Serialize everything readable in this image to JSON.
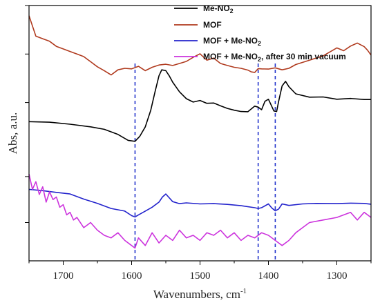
{
  "chart_data": {
    "type": "line",
    "title": "",
    "xlabel": "Wavenumbers, cm",
    "xlabel_sup": "-1",
    "ylabel": "Abs, a.u.",
    "x_axis_reversed": true,
    "xlim": [
      1750,
      1250
    ],
    "ylim": [
      0,
      100
    ],
    "x_ticks": [
      1700,
      1600,
      1500,
      1400,
      1300
    ],
    "y_ticks_unlabeled": [
      15,
      33,
      62,
      81,
      100
    ],
    "grid": false,
    "legend_position": "top-right",
    "reference_lines": [
      1595,
      1415,
      1390
    ],
    "series": [
      {
        "name": "Me-NO",
        "name_sub": "2",
        "color": "#000000",
        "x": [
          1750,
          1720,
          1690,
          1660,
          1640,
          1620,
          1605,
          1595,
          1588,
          1580,
          1572,
          1566,
          1560,
          1556,
          1550,
          1545,
          1540,
          1530,
          1520,
          1510,
          1500,
          1490,
          1480,
          1470,
          1460,
          1450,
          1440,
          1430,
          1420,
          1415,
          1410,
          1405,
          1400,
          1396,
          1392,
          1388,
          1385,
          1380,
          1375,
          1370,
          1360,
          1340,
          1320,
          1300,
          1280,
          1260,
          1250
        ],
        "y": [
          54.5,
          54.3,
          53.5,
          52.5,
          51.5,
          49.5,
          47.2,
          46.8,
          48.8,
          52.5,
          59,
          66,
          72.5,
          74.8,
          74.5,
          72.5,
          70,
          66.2,
          63.5,
          62.2,
          62.8,
          61.7,
          61.8,
          60.7,
          59.7,
          59,
          58.5,
          58.4,
          60.6,
          60.2,
          59.2,
          62.5,
          63.3,
          61,
          58.7,
          58.5,
          62.5,
          68.5,
          70.3,
          68.2,
          65.4,
          64.1,
          64.2,
          63.3,
          63.6,
          63.2,
          63.2
        ]
      },
      {
        "name": "MOF",
        "color": "#b03a1e",
        "x": [
          1750,
          1740,
          1730,
          1720,
          1710,
          1700,
          1690,
          1680,
          1670,
          1660,
          1650,
          1640,
          1630,
          1620,
          1610,
          1600,
          1590,
          1580,
          1570,
          1560,
          1550,
          1540,
          1530,
          1520,
          1510,
          1500,
          1495,
          1490,
          1480,
          1470,
          1460,
          1450,
          1440,
          1430,
          1425,
          1420,
          1415,
          1410,
          1400,
          1390,
          1380,
          1370,
          1360,
          1340,
          1320,
          1300,
          1290,
          1280,
          1270,
          1260,
          1255,
          1250
        ],
        "y": [
          96,
          88,
          87,
          86,
          84,
          83,
          82,
          81,
          80,
          78,
          76,
          74.5,
          72.8,
          74.8,
          75.4,
          75.2,
          76.2,
          74.5,
          75.8,
          76.7,
          77,
          76.5,
          77.3,
          78.1,
          79.7,
          81.1,
          79.8,
          78.6,
          79.4,
          77.3,
          76.5,
          75.8,
          75.4,
          74.7,
          74,
          73.8,
          75.3,
          75.2,
          75.1,
          75.6,
          74.8,
          75.4,
          76.9,
          78.6,
          80.3,
          83.4,
          82.3,
          84.1,
          85.3,
          83.9,
          82.5,
          80.6
        ]
      },
      {
        "name": "MOF + Me-NO",
        "name_sub": "2",
        "color": "#2222cc",
        "x": [
          1750,
          1730,
          1710,
          1690,
          1670,
          1650,
          1630,
          1610,
          1600,
          1595,
          1590,
          1580,
          1570,
          1560,
          1555,
          1550,
          1540,
          1530,
          1520,
          1500,
          1480,
          1460,
          1440,
          1420,
          1415,
          1410,
          1400,
          1395,
          1390,
          1385,
          1380,
          1370,
          1350,
          1330,
          1300,
          1280,
          1260,
          1250
        ],
        "y": [
          28,
          27.5,
          26.8,
          26.2,
          24.2,
          22.5,
          20.5,
          19.5,
          17.7,
          17.2,
          18,
          19.5,
          21,
          23,
          25,
          26.2,
          23.2,
          22.4,
          22.7,
          22.3,
          22.4,
          22.1,
          21.6,
          20.8,
          20.5,
          20.8,
          22.3,
          20.7,
          19.6,
          20.3,
          22.3,
          21.7,
          22.3,
          22.5,
          22.4,
          22.6,
          22.5,
          22.2
        ]
      },
      {
        "name": "MOF + Me-NO",
        "name_sub": "2",
        "name_suffix": ", after 30 min vacuum",
        "color": "#cc33dd",
        "x": [
          1750,
          1745,
          1740,
          1735,
          1730,
          1725,
          1720,
          1715,
          1710,
          1705,
          1700,
          1695,
          1690,
          1685,
          1680,
          1670,
          1660,
          1650,
          1640,
          1630,
          1620,
          1610,
          1600,
          1595,
          1590,
          1580,
          1570,
          1560,
          1550,
          1540,
          1530,
          1520,
          1510,
          1500,
          1490,
          1480,
          1470,
          1460,
          1450,
          1440,
          1430,
          1420,
          1410,
          1400,
          1390,
          1380,
          1370,
          1360,
          1350,
          1340,
          1320,
          1300,
          1280,
          1270,
          1260,
          1250
        ],
        "y": [
          34,
          28,
          31,
          26,
          29,
          23,
          27,
          24,
          25,
          21,
          22,
          18,
          19,
          16,
          17,
          13,
          15,
          12,
          10,
          9,
          11,
          8,
          6,
          5,
          9,
          6,
          11,
          7,
          10,
          8,
          12,
          9,
          10,
          8,
          11,
          10,
          12,
          9,
          11,
          8,
          10,
          9,
          11,
          10,
          8,
          6,
          8,
          11,
          13,
          15,
          16,
          17,
          19,
          16,
          19,
          17
        ]
      }
    ]
  }
}
